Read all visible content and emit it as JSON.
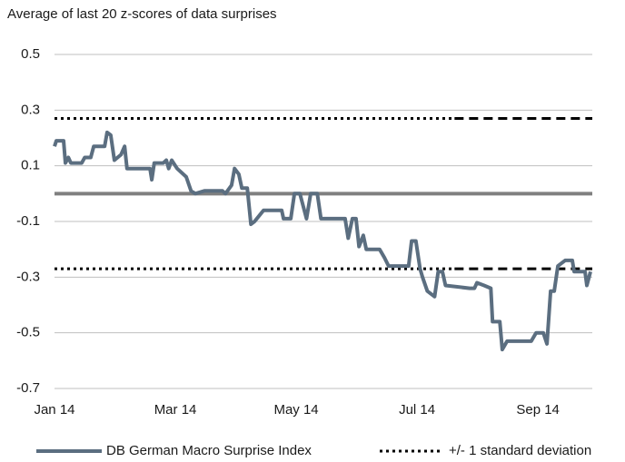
{
  "chart_data": {
    "type": "line",
    "title": "Average of last 20 z-scores of data surprises",
    "xlim": [
      0,
      8.9
    ],
    "xticks": [
      {
        "value": 0,
        "label": "Jan 14"
      },
      {
        "value": 2,
        "label": "Mar 14"
      },
      {
        "value": 4,
        "label": "May 14"
      },
      {
        "value": 6,
        "label": "Jul 14"
      },
      {
        "value": 8,
        "label": "Sep 14"
      }
    ],
    "ylim": [
      -0.7,
      0.5
    ],
    "yticks": [
      0.5,
      0.3,
      0.1,
      -0.1,
      -0.3,
      -0.5,
      -0.7
    ],
    "grid": true,
    "series": [
      {
        "name": "DB German Macro Surprise Index",
        "color": "#5b6e80",
        "x": [
          0.0,
          0.03,
          0.15,
          0.18,
          0.23,
          0.27,
          0.45,
          0.5,
          0.6,
          0.65,
          0.83,
          0.87,
          0.93,
          0.99,
          1.1,
          1.16,
          1.2,
          1.58,
          1.61,
          1.65,
          1.8,
          1.85,
          1.89,
          1.94,
          2.03,
          2.18,
          2.26,
          2.33,
          2.48,
          2.78,
          2.83,
          2.93,
          2.98,
          3.05,
          3.1,
          3.19,
          3.25,
          3.31,
          3.46,
          3.76,
          3.79,
          3.91,
          3.97,
          4.06,
          4.17,
          4.24,
          4.35,
          4.41,
          4.81,
          4.86,
          4.93,
          4.99,
          5.04,
          5.11,
          5.16,
          5.38,
          5.46,
          5.53,
          5.86,
          5.91,
          5.98,
          6.05,
          6.09,
          6.17,
          6.29,
          6.35,
          6.42,
          6.47,
          6.87,
          6.95,
          6.99,
          7.11,
          7.22,
          7.25,
          7.37,
          7.41,
          7.49,
          7.89,
          7.97,
          8.09,
          8.15,
          8.21,
          8.27,
          8.33,
          8.45,
          8.57,
          8.6,
          8.78,
          8.81,
          8.87
        ],
        "values": [
          0.17,
          0.19,
          0.19,
          0.11,
          0.13,
          0.11,
          0.11,
          0.13,
          0.13,
          0.17,
          0.17,
          0.22,
          0.21,
          0.12,
          0.14,
          0.17,
          0.09,
          0.09,
          0.05,
          0.11,
          0.11,
          0.12,
          0.09,
          0.12,
          0.09,
          0.06,
          0.01,
          0.0,
          0.01,
          0.01,
          0.0,
          0.03,
          0.09,
          0.07,
          0.02,
          0.02,
          -0.11,
          -0.1,
          -0.06,
          -0.06,
          -0.09,
          -0.09,
          0.0,
          0.0,
          -0.09,
          0.0,
          0.0,
          -0.09,
          -0.09,
          -0.16,
          -0.09,
          -0.09,
          -0.19,
          -0.15,
          -0.2,
          -0.2,
          -0.23,
          -0.26,
          -0.26,
          -0.17,
          -0.17,
          -0.27,
          -0.3,
          -0.35,
          -0.37,
          -0.28,
          -0.28,
          -0.33,
          -0.34,
          -0.34,
          -0.32,
          -0.33,
          -0.34,
          -0.46,
          -0.46,
          -0.56,
          -0.53,
          -0.53,
          -0.5,
          -0.5,
          -0.54,
          -0.35,
          -0.35,
          -0.26,
          -0.24,
          -0.24,
          -0.28,
          -0.28,
          -0.33,
          -0.28
        ]
      }
    ],
    "band": {
      "name": "+/- 1 standard deviation",
      "color": "#000000",
      "values": [
        0.27,
        -0.27
      ],
      "dashed_from": 6.62
    },
    "legend": "bottom"
  }
}
